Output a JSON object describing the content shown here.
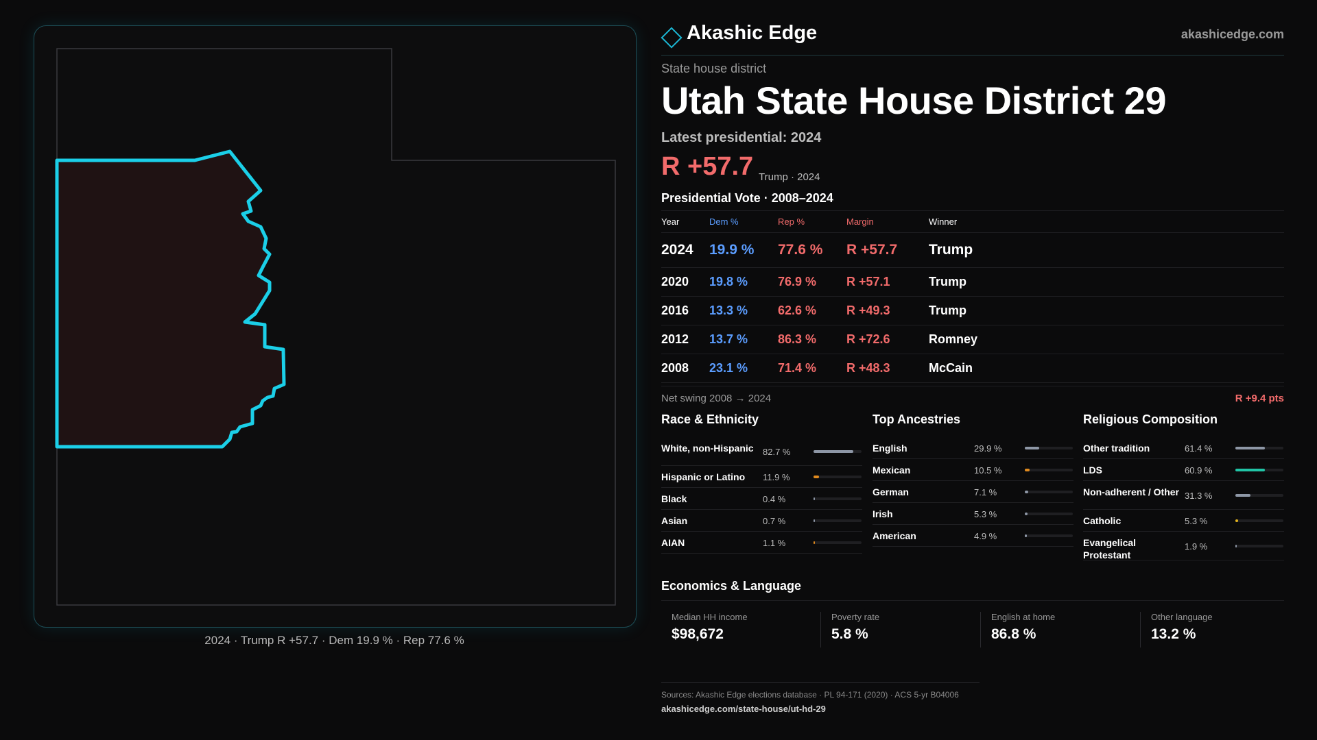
{
  "brand": {
    "name": "Akashic Edge",
    "url": "akashicedge.com",
    "accent": "#1bb7d4"
  },
  "district": {
    "kicker": "State house district",
    "title": "Utah State House District 29",
    "latest_label": "Latest presidential: 2024",
    "margin": "R +57.7",
    "margin_sub": "Trump · 2024"
  },
  "map": {
    "caption": "2024 · Trump R +57.7 · Dem 19.9 % · Rep 77.6 %",
    "outline_color": "#1bcfe8",
    "fill_color": "#1f1213"
  },
  "vote": {
    "title": "Presidential Vote · 2008–2024",
    "headers": {
      "year": "Year",
      "dem": "Dem %",
      "rep": "Rep %",
      "margin": "Margin",
      "winner": "Winner"
    },
    "rows": [
      {
        "year": "2024",
        "dem": "19.9 %",
        "rep": "77.6 %",
        "margin": "R +57.7",
        "winner": "Trump"
      },
      {
        "year": "2020",
        "dem": "19.8 %",
        "rep": "76.9 %",
        "margin": "R +57.1",
        "winner": "Trump"
      },
      {
        "year": "2016",
        "dem": "13.3 %",
        "rep": "62.6 %",
        "margin": "R +49.3",
        "winner": "Trump"
      },
      {
        "year": "2012",
        "dem": "13.7 %",
        "rep": "86.3 %",
        "margin": "R +72.6",
        "winner": "Romney"
      },
      {
        "year": "2008",
        "dem": "23.1 %",
        "rep": "71.4 %",
        "margin": "R +48.3",
        "winner": "McCain"
      }
    ],
    "dem_color": "#5b9dff",
    "rep_color": "#f26b6b"
  },
  "swing": {
    "label": "Net swing 2008 → 2024",
    "value": "R +9.4 pts"
  },
  "race": {
    "title": "Race & Ethnicity",
    "rows": [
      {
        "label": "White, non-Hispanic",
        "value": "82.7 %",
        "share": 0.827,
        "color": "#8e97a6"
      },
      {
        "label": "Hispanic or Latino",
        "value": "11.9 %",
        "share": 0.119,
        "color": "#e08a1e"
      },
      {
        "label": "Black",
        "value": "0.4 %",
        "share": 0.004,
        "color": "#8e97a6"
      },
      {
        "label": "Asian",
        "value": "0.7 %",
        "share": 0.007,
        "color": "#8e97a6"
      },
      {
        "label": "AIAN",
        "value": "1.1 %",
        "share": 0.011,
        "color": "#e08a1e"
      }
    ]
  },
  "ancestry": {
    "title": "Top Ancestries",
    "rows": [
      {
        "label": "English",
        "value": "29.9 %",
        "share": 0.299,
        "color": "#8e97a6"
      },
      {
        "label": "Mexican",
        "value": "10.5 %",
        "share": 0.105,
        "color": "#e08a1e"
      },
      {
        "label": "German",
        "value": "7.1 %",
        "share": 0.071,
        "color": "#8e97a6"
      },
      {
        "label": "Irish",
        "value": "5.3 %",
        "share": 0.053,
        "color": "#8e97a6"
      },
      {
        "label": "American",
        "value": "4.9 %",
        "share": 0.049,
        "color": "#8e97a6"
      }
    ]
  },
  "religion": {
    "title": "Religious Composition",
    "rows": [
      {
        "label": "Other tradition",
        "value": "61.4 %",
        "share": 0.614,
        "color": "#8e97a6"
      },
      {
        "label": "LDS",
        "value": "60.9 %",
        "share": 0.609,
        "color": "#21c4a6"
      },
      {
        "label": "Non-adherent / Other",
        "value": "31.3 %",
        "share": 0.313,
        "color": "#8e97a6"
      },
      {
        "label": "Catholic",
        "value": "5.3 %",
        "share": 0.053,
        "color": "#e2b21c"
      },
      {
        "label": "Evangelical Protestant",
        "value": "1.9 %",
        "share": 0.019,
        "color": "#8e97a6"
      }
    ]
  },
  "economics": {
    "title": "Economics & Language",
    "cells": [
      {
        "label": "Median HH income",
        "value": "$98,672"
      },
      {
        "label": "Poverty rate",
        "value": "5.8 %"
      },
      {
        "label": "English at home",
        "value": "86.8 %"
      },
      {
        "label": "Other language",
        "value": "13.2 %"
      }
    ]
  },
  "sources": {
    "line": "Sources: Akashic Edge elections database · PL 94-171 (2020) · ACS 5-yr B04006",
    "url": "akashicedge.com/state-house/ut-hd-29"
  }
}
